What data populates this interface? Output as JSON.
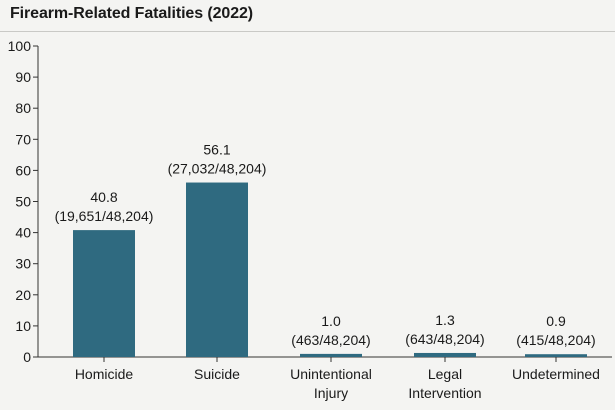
{
  "chart_data": {
    "type": "bar",
    "title": "Firearm-Related Fatalities (2022)",
    "xlabel": "",
    "ylabel": "",
    "ylim": [
      0,
      100
    ],
    "yticks": [
      0,
      10,
      20,
      30,
      40,
      50,
      60,
      70,
      80,
      90,
      100
    ],
    "grid": false,
    "bar_color": "#2f6a80",
    "categories": [
      {
        "lines": [
          "Homicide"
        ]
      },
      {
        "lines": [
          "Suicide"
        ]
      },
      {
        "lines": [
          "Unintentional",
          "Injury"
        ]
      },
      {
        "lines": [
          "Legal",
          "Intervention"
        ]
      },
      {
        "lines": [
          "Undetermined"
        ]
      }
    ],
    "values": [
      40.8,
      56.1,
      1.0,
      1.3,
      0.9
    ],
    "value_labels": [
      "40.8",
      "56.1",
      "1.0",
      "1.3",
      "0.9"
    ],
    "count_labels": [
      "(19,651/48,204)",
      "(27,032/48,204)",
      "(463/48,204)",
      "(643/48,204)",
      "(415/48,204)"
    ]
  }
}
